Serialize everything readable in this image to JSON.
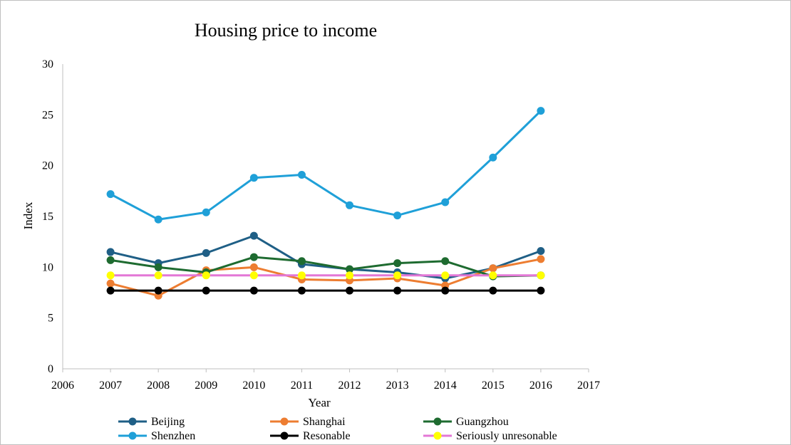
{
  "chart_data": {
    "type": "line",
    "title": "Housing price to income",
    "xlabel": "Year",
    "ylabel": "Index",
    "xlim": [
      2006,
      2017
    ],
    "ylim": [
      0,
      30
    ],
    "xticks": [
      2006,
      2007,
      2008,
      2009,
      2010,
      2011,
      2012,
      2013,
      2014,
      2015,
      2016,
      2017
    ],
    "yticks": [
      0,
      5,
      10,
      15,
      20,
      25,
      30
    ],
    "grid": false,
    "legend_position": "bottom",
    "x": [
      2007,
      2008,
      2009,
      2010,
      2011,
      2012,
      2013,
      2014,
      2015,
      2016
    ],
    "series": [
      {
        "name": "Beijing",
        "color": "#1f5f86",
        "values": [
          11.5,
          10.4,
          11.4,
          13.1,
          10.3,
          9.8,
          9.5,
          8.9,
          9.9,
          11.6
        ]
      },
      {
        "name": "Shanghai",
        "color": "#ed7d31",
        "values": [
          8.4,
          7.2,
          9.7,
          10.0,
          8.8,
          8.7,
          8.9,
          8.2,
          9.9,
          10.8
        ]
      },
      {
        "name": "Guangzhou",
        "color": "#1e6b30",
        "values": [
          10.7,
          10.0,
          9.5,
          11.0,
          10.6,
          9.8,
          10.4,
          10.6,
          9.1,
          9.2
        ]
      },
      {
        "name": "Shenzhen",
        "color": "#1fa0d8",
        "values": [
          17.2,
          14.7,
          15.4,
          18.8,
          19.1,
          16.1,
          15.1,
          16.4,
          20.8,
          25.4
        ]
      },
      {
        "name": "Resonable",
        "color": "#000000",
        "values": [
          7.7,
          7.7,
          7.7,
          7.7,
          7.7,
          7.7,
          7.7,
          7.7,
          7.7,
          7.7
        ]
      },
      {
        "name": "Seriously unresonable",
        "color": "#e377d6",
        "marker_color": "#ffff00",
        "values": [
          9.2,
          9.2,
          9.2,
          9.2,
          9.2,
          9.2,
          9.2,
          9.2,
          9.2,
          9.2
        ]
      }
    ]
  }
}
